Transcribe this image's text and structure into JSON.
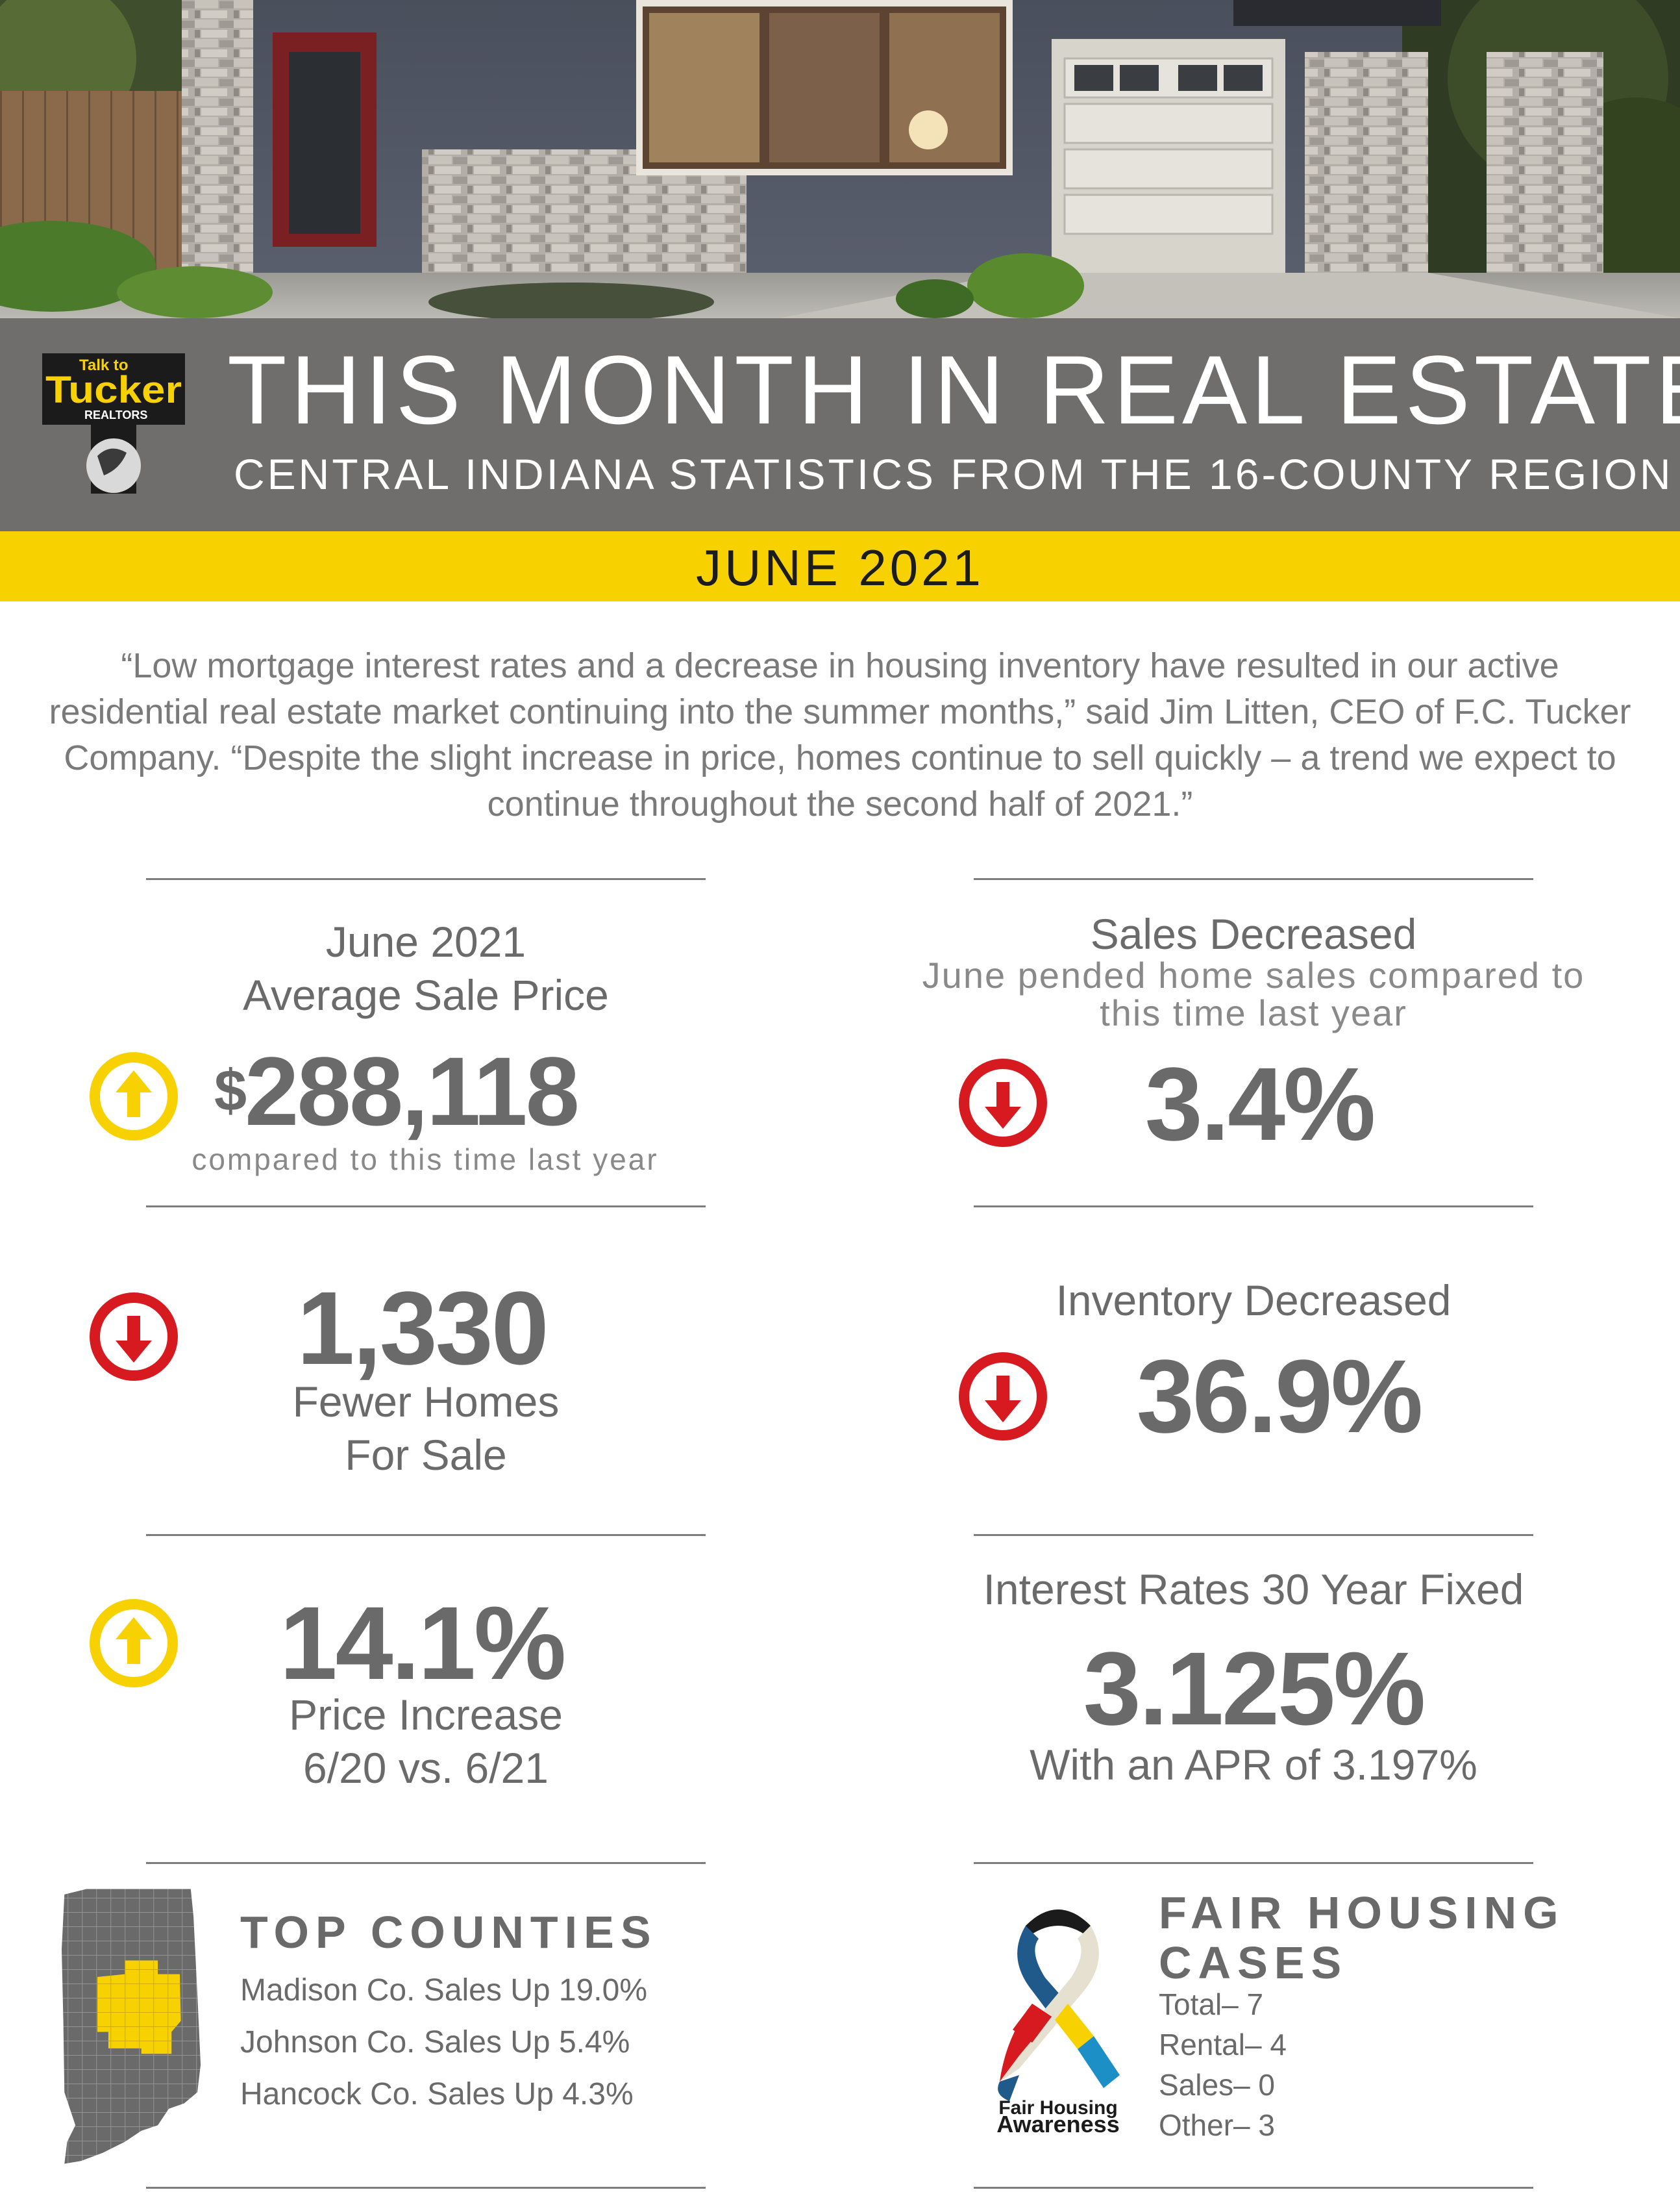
{
  "header": {
    "title": "THIS MONTH IN REAL ESTATE",
    "subtitle": "CENTRAL INDIANA STATISTICS FROM THE 16-COUNTY REGION",
    "month": "JUNE 2021",
    "logo": {
      "line1": "Talk to",
      "line2": "Tucker",
      "line3": "REALTORS"
    }
  },
  "quote": "“Low mortgage interest rates and a decrease in housing inventory have resulted in our active residential real estate market continuing into the summer months,” said Jim Litten, CEO of F.C. Tucker Company. “Despite the slight increase in price, homes continue to sell quickly – a trend we expect to continue throughout the second half of 2021.”",
  "stats": {
    "avg_price": {
      "label1": "June 2021",
      "label2": "Average Sale Price",
      "currency": "$",
      "value": "288,118",
      "note": "compared to this time last year",
      "direction": "up"
    },
    "sales": {
      "label": "Sales Decreased",
      "sub1": "June pended home sales compared to",
      "sub2": "this time last year",
      "value": "3.4%",
      "direction": "down"
    },
    "fewer_homes": {
      "value": "1,330",
      "label1": "Fewer Homes",
      "label2": "For Sale",
      "direction": "down"
    },
    "inventory": {
      "label": "Inventory Decreased",
      "value": "36.9%",
      "direction": "down"
    },
    "price_increase": {
      "value": "14.1%",
      "label1": "Price Increase",
      "label2": "6/20 vs. 6/21",
      "direction": "up"
    },
    "interest": {
      "label": "Interest Rates 30 Year Fixed",
      "value": "3.125%",
      "apr": "With an APR of 3.197%"
    }
  },
  "top_counties": {
    "heading": "TOP COUNTIES",
    "items": [
      "Madison Co. Sales Up 19.0%",
      "Johnson Co. Sales Up 5.4%",
      "Hancock Co. Sales Up 4.3%"
    ]
  },
  "fair_housing": {
    "heading1": "FAIR HOUSING",
    "heading2": "CASES",
    "items": [
      "Total– 7",
      "Rental– 4",
      "Sales– 0",
      "Other– 3"
    ],
    "ribbon_label1": "Fair Housing",
    "ribbon_label2": "Awareness"
  },
  "colors": {
    "banner": "#6f6e6d",
    "accent_yellow": "#f8d100",
    "down_red": "#d71920",
    "text_gray": "#6b6a6a"
  }
}
